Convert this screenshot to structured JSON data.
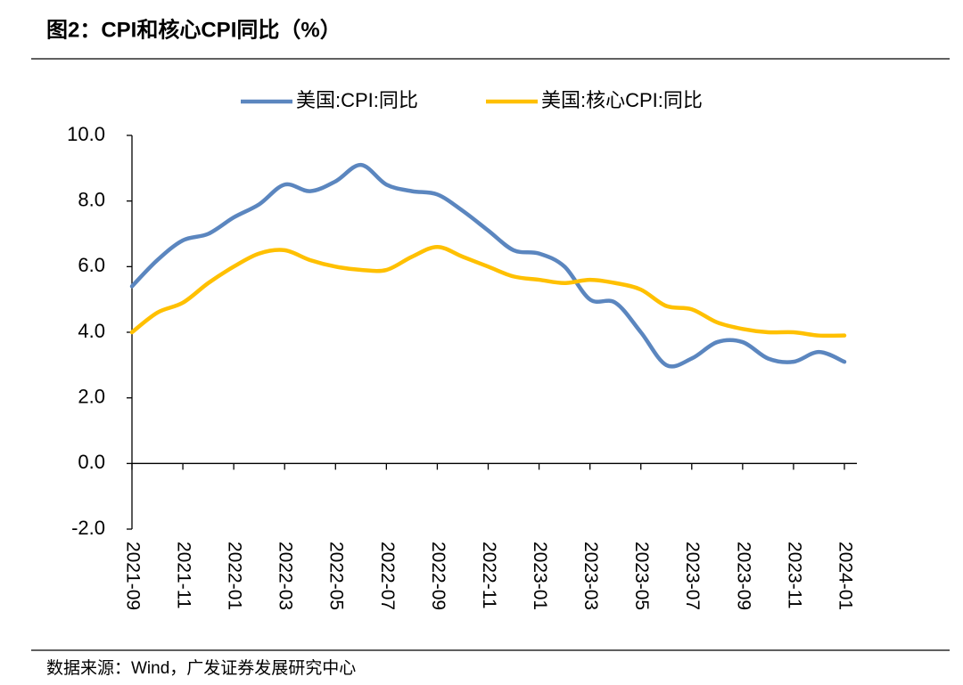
{
  "chart_data": {
    "type": "line",
    "title": "图2：CPI和核心CPI同比（%）",
    "source": "数据来源：Wind，广发证券发展研究中心",
    "categories": [
      "2021-09",
      null,
      "2021-11",
      null,
      "2022-01",
      null,
      "2022-03",
      null,
      "2022-05",
      null,
      "2022-07",
      null,
      "2022-09",
      null,
      "2022-11",
      null,
      "2023-01",
      null,
      "2023-03",
      null,
      "2023-05",
      null,
      "2023-07",
      null,
      "2023-09",
      null,
      "2023-11",
      null,
      "2024-01"
    ],
    "series": [
      {
        "name": "美国:CPI:同比",
        "color": "#5b86bf",
        "values": [
          5.4,
          6.2,
          6.8,
          7.0,
          7.5,
          7.9,
          8.5,
          8.3,
          8.6,
          9.1,
          8.5,
          8.3,
          8.2,
          7.7,
          7.1,
          6.5,
          6.4,
          6.0,
          5.0,
          4.9,
          4.0,
          3.0,
          3.2,
          3.7,
          3.7,
          3.2,
          3.1,
          3.4,
          3.1
        ]
      },
      {
        "name": "美国:核心CPI:同比",
        "color": "#ffc000",
        "values": [
          4.0,
          4.6,
          4.9,
          5.5,
          6.0,
          6.4,
          6.5,
          6.2,
          6.0,
          5.9,
          5.9,
          6.3,
          6.6,
          6.3,
          6.0,
          5.7,
          5.6,
          5.5,
          5.6,
          5.5,
          5.3,
          4.8,
          4.7,
          4.3,
          4.1,
          4.0,
          4.0,
          3.9,
          3.9
        ]
      }
    ],
    "ylim": [
      -2,
      10
    ],
    "yticks": [
      {
        "value": -2,
        "label": "-2.0"
      },
      {
        "value": 0,
        "label": "0.0"
      },
      {
        "value": 2,
        "label": "2.0"
      },
      {
        "value": 4,
        "label": "4.0"
      },
      {
        "value": 6,
        "label": "6.0"
      },
      {
        "value": 8,
        "label": "8.0"
      },
      {
        "value": 10,
        "label": "10.0"
      }
    ],
    "grid": false,
    "legend": "top"
  }
}
